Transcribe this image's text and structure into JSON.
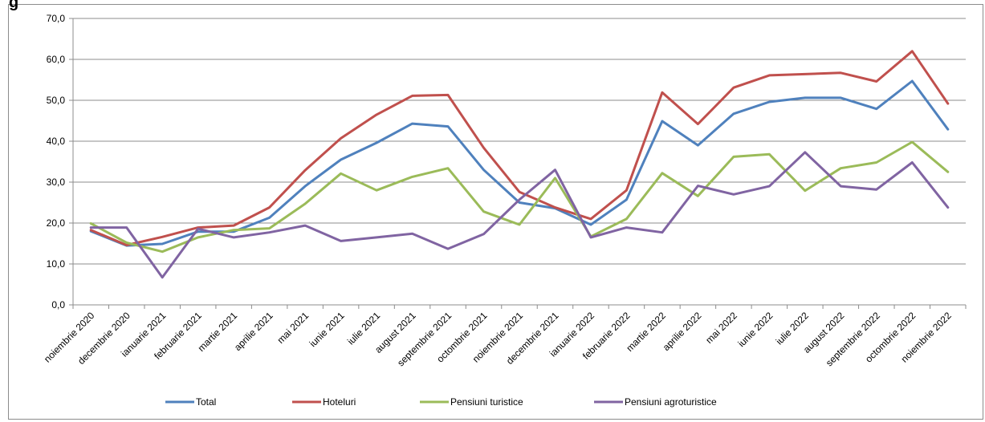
{
  "header": {
    "title_fragment": "g"
  },
  "chart_data": {
    "type": "line",
    "title": "",
    "xlabel": "",
    "ylabel": "",
    "ylim": [
      0,
      70
    ],
    "ytick_step": 10,
    "grid": true,
    "legend_position": "bottom",
    "categories": [
      "noiembrie 2020",
      "decembrie 2020",
      "ianuarie 2021",
      "februarie 2021",
      "martie 2021",
      "aprilie 2021",
      "mai 2021",
      "iunie 2021",
      "iulie 2021",
      "august 2021",
      "septembrie 2021",
      "octombrie 2021",
      "noiembrie 2021",
      "decembrie 2021",
      "ianuarie 2022",
      "februarie 2022",
      "martie 2022",
      "aprilie 2022",
      "mai 2022",
      "iunie 2022",
      "iulie 2022",
      "august 2022",
      "septembrie 2022",
      "octombrie 2022",
      "noiembrie 2022"
    ],
    "series": [
      {
        "name": "Total",
        "color": "#4f81bd",
        "values": [
          18.0,
          14.5,
          14.9,
          17.9,
          17.9,
          21.3,
          29.0,
          35.5,
          39.6,
          44.3,
          43.6,
          33.0,
          25.0,
          23.6,
          19.6,
          25.7,
          44.9,
          39.0,
          46.7,
          49.6,
          50.6,
          50.6,
          47.9,
          54.7,
          42.9
        ]
      },
      {
        "name": "Hoteluri",
        "color": "#c0504d",
        "values": [
          18.3,
          14.6,
          16.6,
          18.9,
          19.4,
          23.8,
          32.9,
          40.7,
          46.5,
          51.1,
          51.3,
          38.4,
          27.6,
          23.8,
          21.0,
          28.0,
          51.9,
          44.2,
          53.1,
          56.1,
          56.4,
          56.7,
          54.6,
          62.0,
          49.2
        ]
      },
      {
        "name": "Pensiuni turistice",
        "color": "#9bbb59",
        "values": [
          19.9,
          15.2,
          13.0,
          16.5,
          18.3,
          18.7,
          24.7,
          32.1,
          28.0,
          31.3,
          33.4,
          22.8,
          19.6,
          31.0,
          16.7,
          21.0,
          32.2,
          26.6,
          36.2,
          36.8,
          27.9,
          33.4,
          34.8,
          39.8,
          32.5
        ]
      },
      {
        "name": "Pensiuni agroturistice",
        "color": "#8064a2",
        "values": [
          18.9,
          18.9,
          6.7,
          18.6,
          16.5,
          17.7,
          19.4,
          15.6,
          16.5,
          17.4,
          13.7,
          17.3,
          25.7,
          33.0,
          16.5,
          18.9,
          17.7,
          29.1,
          27.0,
          29.0,
          37.3,
          29.0,
          28.2,
          34.8,
          23.8
        ]
      }
    ]
  }
}
